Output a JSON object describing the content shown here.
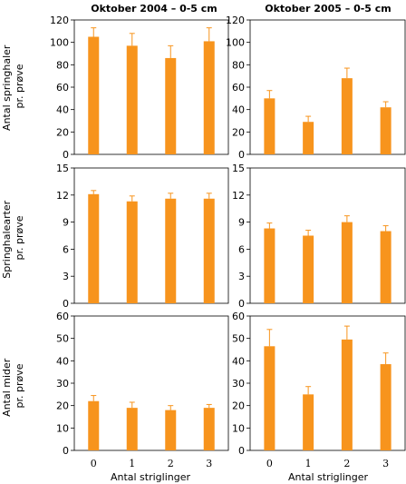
{
  "chart_data": {
    "type": "bar",
    "bar_color": "#F7941D",
    "column_titles": [
      "Oktober 2004 – 0-5 cm",
      "Oktober 2005 – 0-5 cm"
    ],
    "row_labels": [
      [
        "Antal springhaler",
        "pr. prøve"
      ],
      [
        "Springhalearter",
        "pr. prøve"
      ],
      [
        "Antal mider",
        "pr. prøve"
      ]
    ],
    "xlabel": "Antal striglinger",
    "categories": [
      "0",
      "1",
      "2",
      "3"
    ],
    "rows": [
      {
        "ylim": [
          0,
          120
        ],
        "yticks": [
          0,
          20,
          40,
          60,
          80,
          100,
          120
        ],
        "panels": [
          {
            "values": [
              105,
              97,
              86,
              101
            ],
            "errors": [
              8,
              11,
              11,
              12
            ]
          },
          {
            "values": [
              50,
              29,
              68,
              42
            ],
            "errors": [
              7,
              5,
              9,
              5
            ]
          }
        ]
      },
      {
        "ylim": [
          0,
          15
        ],
        "yticks": [
          0,
          3,
          6,
          9,
          12,
          15
        ],
        "panels": [
          {
            "values": [
              12.1,
              11.3,
              11.6,
              11.6
            ],
            "errors": [
              0.4,
              0.6,
              0.6,
              0.6
            ]
          },
          {
            "values": [
              8.3,
              7.5,
              9.0,
              8.0
            ],
            "errors": [
              0.6,
              0.6,
              0.7,
              0.6
            ]
          }
        ]
      },
      {
        "ylim": [
          0,
          60
        ],
        "yticks": [
          0,
          10,
          20,
          30,
          40,
          50,
          60
        ],
        "panels": [
          {
            "values": [
              22,
              19,
              18,
              19
            ],
            "errors": [
              2.5,
              2.5,
              2.0,
              1.5
            ]
          },
          {
            "values": [
              46.5,
              25,
              49.5,
              38.5
            ],
            "errors": [
              7.5,
              3.5,
              6,
              5
            ]
          }
        ]
      }
    ]
  }
}
